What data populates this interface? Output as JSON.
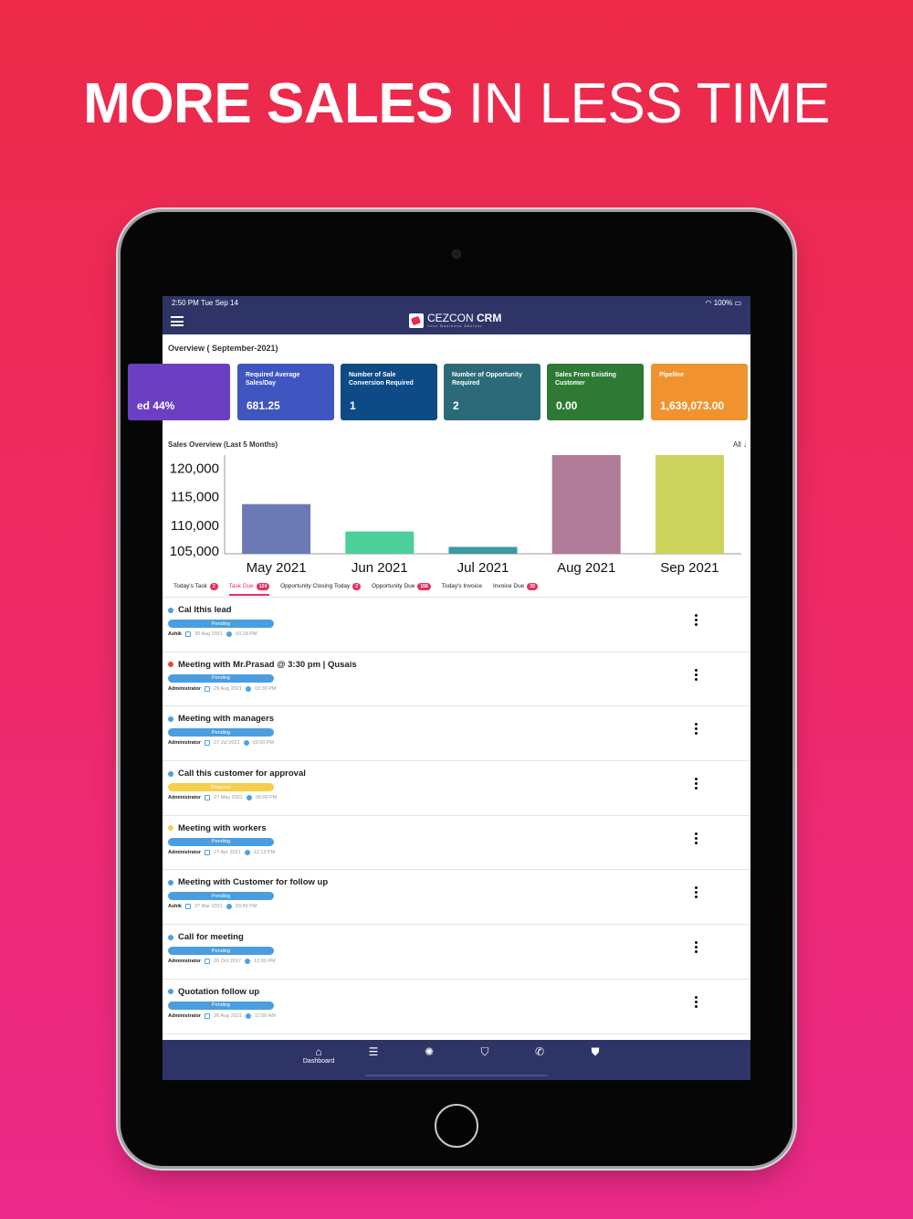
{
  "headline": {
    "bold": "MORE SALES",
    "light": "IN LESS TIME"
  },
  "status": {
    "time": "2:50 PM  Tue Sep 14",
    "right": "100%"
  },
  "app": {
    "brand_light": "CEZCON",
    "brand_bold": "CRM",
    "tagline": "Your Business Advisor"
  },
  "overview": {
    "title": "Overview ( September-2021)",
    "cards": [
      {
        "label": "",
        "value": "ed  44%",
        "color": "#6b3fc2"
      },
      {
        "label": "Required Average Sales/Day",
        "value": "681.25",
        "color": "#3f55c0"
      },
      {
        "label": "Number of Sale Conversion Required",
        "value": "1",
        "color": "#0e4a86"
      },
      {
        "label": "Number of Opportunity Required",
        "value": "2",
        "color": "#2c6a7a"
      },
      {
        "label": "Sales From Existing Customer",
        "value": "0.00",
        "color": "#2e7a35"
      },
      {
        "label": "Pipeline",
        "value": "1,639,073.00",
        "color": "#f0932f"
      }
    ]
  },
  "sales": {
    "title": "Sales Overview (Last 5 Months)",
    "filter": "All"
  },
  "chart_data": {
    "type": "bar",
    "categories": [
      "May 2021",
      "Jun 2021",
      "Jul 2021",
      "Aug 2021",
      "Sep 2021"
    ],
    "values": [
      113700,
      108900,
      106200,
      122300,
      122300
    ],
    "colors": [
      "#6b79b4",
      "#4ccf9a",
      "#3a9aa0",
      "#b07c98",
      "#ccd35c"
    ],
    "ylim": [
      105000,
      122300
    ],
    "yticks": [
      "120,000",
      "115,000",
      "110,000",
      "105,000"
    ],
    "ytick_values": [
      120000,
      115000,
      110000,
      105000
    ]
  },
  "tabs": [
    {
      "label": "Today's Task",
      "badge": "2",
      "active": false
    },
    {
      "label": "Task Due",
      "badge": "124",
      "active": true
    },
    {
      "label": "Opportunity Closing Today",
      "badge": "2",
      "active": false
    },
    {
      "label": "Opportunity Due",
      "badge": "158",
      "active": false
    },
    {
      "label": "Today's Invoice",
      "badge": "",
      "active": false
    },
    {
      "label": "Invoice Due",
      "badge": "30",
      "active": false
    }
  ],
  "tasks": [
    {
      "title": "Cal lthis lead",
      "status": "Pending",
      "status_color": "#4a9ee0",
      "dot": "#4a9ee0",
      "user": "Ashik",
      "date": "30 Aug 2021",
      "time": "03:18 PM"
    },
    {
      "title": "Meeting with Mr.Prasad @ 3:30 pm | Qusais",
      "status": "Pending",
      "status_color": "#4a9ee0",
      "dot": "#e24b3b",
      "user": "Administrator",
      "date": "29 Aug 2021",
      "time": "03:30 PM"
    },
    {
      "title": "Meeting with managers",
      "status": "Pending",
      "status_color": "#4a9ee0",
      "dot": "#4a9ee0",
      "user": "Administrator",
      "date": "27 Jul 2021",
      "time": "02:00 PM"
    },
    {
      "title": "Call this customer for approval",
      "status": "Progress",
      "status_color": "#f7ce4b",
      "dot": "#4a9ee0",
      "user": "Administrator",
      "date": "27 May 2021",
      "time": "05:00 PM"
    },
    {
      "title": "Meeting with workers",
      "status": "Pending",
      "status_color": "#4a9ee0",
      "dot": "#f7ce4b",
      "user": "Administrator",
      "date": "27 Apr 2021",
      "time": "12:13 PM"
    },
    {
      "title": "Meeting with Customer for follow up",
      "status": "Pending",
      "status_color": "#4a9ee0",
      "dot": "#4a9ee0",
      "user": "Ashik",
      "date": "27 Mar 2021",
      "time": "03:45 PM"
    },
    {
      "title": "Call for meeting",
      "status": "Pending",
      "status_color": "#4a9ee0",
      "dot": "#4a9ee0",
      "user": "Administrator",
      "date": "26 Oct 2017",
      "time": "12:00 PM"
    },
    {
      "title": "Quotation follow up",
      "status": "Pending",
      "status_color": "#4a9ee0",
      "dot": "#4a9ee0",
      "user": "Administrator",
      "date": "26 Aug 2021",
      "time": "11:56 AM"
    }
  ],
  "nav": [
    {
      "icon": "home-icon",
      "glyph": "⌂",
      "label": "Dashboard"
    },
    {
      "icon": "list-icon",
      "glyph": "☰",
      "label": ""
    },
    {
      "icon": "bulb-icon",
      "glyph": "✺",
      "label": ""
    },
    {
      "icon": "shield-user-icon",
      "glyph": "⛉",
      "label": ""
    },
    {
      "icon": "phone-list-icon",
      "glyph": "✆",
      "label": ""
    },
    {
      "icon": "shield-info-icon",
      "glyph": "⛊",
      "label": ""
    }
  ]
}
